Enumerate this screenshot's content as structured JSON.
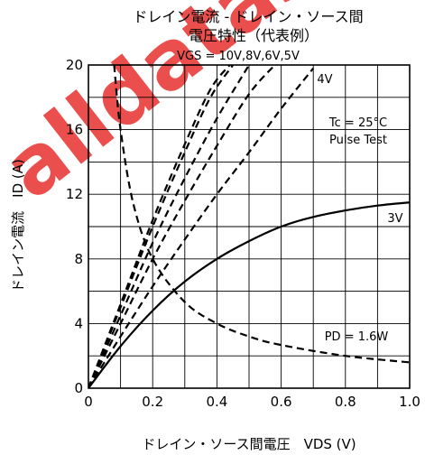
{
  "chart_data": {
    "type": "line",
    "title_line1": "ドレイン電流 - ドレイン・ソース間",
    "title_line2": "電圧特性（代表例）",
    "vgs_label": "VGS = 10V,8V,6V,5V",
    "xlabel": "ドレイン・ソース間電圧　VDS (V)",
    "ylabel": "ドレイン電流　ID (A)",
    "xlim": [
      0,
      1.0
    ],
    "ylim": [
      0,
      20
    ],
    "x_ticks": [
      "0",
      "0.2",
      "0.4",
      "0.6",
      "0.8",
      "1.0"
    ],
    "y_ticks": [
      "0",
      "4",
      "8",
      "12",
      "16",
      "20"
    ],
    "annotation_tc": "Tc = 25°C",
    "annotation_test": "Pulse Test",
    "grid": true,
    "series": [
      {
        "name": "10V",
        "style": "dashed",
        "x": [
          0,
          0.1,
          0.2,
          0.3,
          0.38,
          0.44
        ],
        "y": [
          0,
          5.2,
          10.4,
          15.1,
          18.5,
          20
        ]
      },
      {
        "name": "8V",
        "style": "dashed",
        "x": [
          0,
          0.1,
          0.2,
          0.3,
          0.38,
          0.45
        ],
        "y": [
          0,
          5.0,
          10.0,
          14.6,
          18.0,
          20
        ]
      },
      {
        "name": "6V",
        "style": "dashed",
        "x": [
          0,
          0.1,
          0.2,
          0.3,
          0.4,
          0.5
        ],
        "y": [
          0,
          4.5,
          9.0,
          13.0,
          16.7,
          20
        ]
      },
      {
        "name": "5V",
        "style": "dashed",
        "x": [
          0,
          0.1,
          0.2,
          0.3,
          0.4,
          0.5,
          0.58
        ],
        "y": [
          0,
          4.0,
          8.0,
          11.6,
          15.0,
          18.2,
          20
        ]
      },
      {
        "name": "4V",
        "style": "dashed",
        "x": [
          0,
          0.1,
          0.2,
          0.3,
          0.4,
          0.5,
          0.6,
          0.7
        ],
        "y": [
          0,
          3.2,
          6.3,
          9.2,
          12.0,
          14.6,
          17.3,
          19.8
        ]
      },
      {
        "name": "3V",
        "style": "solid",
        "x": [
          0,
          0.1,
          0.2,
          0.3,
          0.4,
          0.5,
          0.6,
          0.7,
          0.8,
          0.9,
          1.0
        ],
        "y": [
          0,
          2.6,
          4.8,
          6.6,
          8.0,
          9.1,
          10.0,
          10.6,
          11.0,
          11.3,
          11.5
        ]
      },
      {
        "name": "PD = 1.6W",
        "style": "dashed",
        "x": [
          0.08,
          0.1,
          0.14,
          0.2,
          0.3,
          0.4,
          0.5,
          0.6,
          0.8,
          1.0
        ],
        "y": [
          20,
          16,
          11.4,
          8.0,
          5.33,
          4.0,
          3.2,
          2.67,
          2.0,
          1.6
        ]
      }
    ]
  }
}
